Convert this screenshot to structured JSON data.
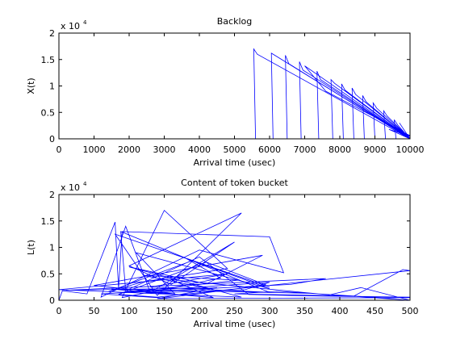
{
  "chart_data": [
    {
      "type": "line",
      "title": "Backlog",
      "xlabel": "Arrival time (usec)",
      "ylabel": "X(t)",
      "xlim": [
        0,
        10000
      ],
      "ylim": [
        0,
        20000
      ],
      "y_exponent_label": "x 10",
      "y_exponent": "4",
      "xticks": [
        0,
        1000,
        2000,
        3000,
        4000,
        5000,
        6000,
        7000,
        8000,
        9000,
        10000
      ],
      "yticks": [
        0,
        5000,
        10000,
        15000,
        20000
      ],
      "ytick_labels": [
        "0",
        "0.5",
        "1",
        "1.5",
        "2"
      ],
      "grid": false,
      "line_color": "#0000ff",
      "series": [
        {
          "x": [
            0,
            5600,
            5550,
            5650,
            10000,
            6100,
            6050,
            6150,
            10000,
            6500,
            6450,
            6550,
            10000,
            6900,
            6850,
            6950,
            10000,
            7400,
            7350,
            7450,
            10000,
            7800,
            7750,
            7850,
            10000,
            8100,
            8050,
            8150,
            10000,
            8400,
            8350,
            8450,
            10000,
            8700,
            8650,
            8750,
            10000,
            9000,
            8950,
            9050,
            10000,
            9300,
            9250,
            9350,
            10000,
            9600,
            9550,
            9650,
            10000,
            7000,
            7600,
            10000,
            10000,
            9700,
            10000,
            9500,
            10000,
            9400,
            10000
          ],
          "y": [
            0,
            0,
            17000,
            16000,
            0,
            0,
            16200,
            15800,
            0,
            0,
            15800,
            14200,
            0,
            0,
            14600,
            13000,
            0,
            0,
            12800,
            11200,
            0,
            0,
            11200,
            10500,
            0,
            0,
            10400,
            9200,
            0,
            0,
            9600,
            8400,
            0,
            0,
            8200,
            7000,
            0,
            0,
            6800,
            5800,
            0,
            0,
            5300,
            4300,
            0,
            0,
            3600,
            2600,
            0,
            13800,
            9000,
            600,
            0,
            3000,
            0,
            2400,
            500,
            1800,
            0
          ]
        }
      ]
    },
    {
      "type": "line",
      "title": "Content of token bucket",
      "xlabel": "Arrival time (usec)",
      "ylabel": "L(t)",
      "xlim": [
        0,
        500
      ],
      "ylim": [
        0,
        20000
      ],
      "y_exponent_label": "x 10",
      "y_exponent": "4",
      "xticks": [
        0,
        50,
        100,
        150,
        200,
        250,
        300,
        350,
        400,
        450,
        500
      ],
      "yticks": [
        0,
        5000,
        10000,
        15000,
        20000
      ],
      "ytick_labels": [
        "0",
        "0.5",
        "1",
        "1.5",
        "2"
      ],
      "grid": false,
      "line_color": "#0000ff",
      "series": [
        {
          "x": [
            0,
            5,
            40,
            80,
            85,
            90,
            300,
            320,
            200,
            60,
            95,
            130,
            250,
            160,
            100,
            260,
            140,
            80,
            300,
            180,
            230,
            90,
            150,
            240,
            120,
            70,
            190,
            300,
            110,
            165,
            50,
            290,
            210,
            100,
            260,
            0,
            240,
            130,
            300,
            88,
            95,
            200,
            270,
            330,
            380,
            500,
            470,
            310,
            250,
            420,
            490,
            500,
            140,
            85,
            210,
            295,
            150,
            60,
            330,
            380,
            10,
            210,
            120,
            255,
            175,
            90,
            300,
            265,
            115,
            225,
            140,
            500,
            500,
            430,
            385,
            160,
            220,
            75,
            360,
            500
          ],
          "y": [
            0,
            1800,
            1200,
            14800,
            2200,
            13000,
            12000,
            5200,
            9500,
            600,
            14000,
            1500,
            11000,
            3000,
            6500,
            16500,
            900,
            12500,
            2500,
            8000,
            4200,
            500,
            17000,
            6000,
            3500,
            1600,
            7500,
            2200,
            9000,
            1200,
            2800,
            8500,
            3100,
            6300,
            600,
            2000,
            5000,
            2500,
            1500,
            13000,
            1800,
            8200,
            1100,
            900,
            800,
            600,
            400,
            1700,
            1200,
            800,
            5800,
            5600,
            600,
            1100,
            7200,
            2900,
            400,
            1200,
            3000,
            4100,
            1900,
            2300,
            4700,
            3800,
            2600,
            1500,
            3400,
            2000,
            1300,
            2400,
            300,
            500,
            0,
            2400,
            1000,
            3900,
            500,
            2100,
            1300,
            0
          ]
        }
      ]
    }
  ]
}
